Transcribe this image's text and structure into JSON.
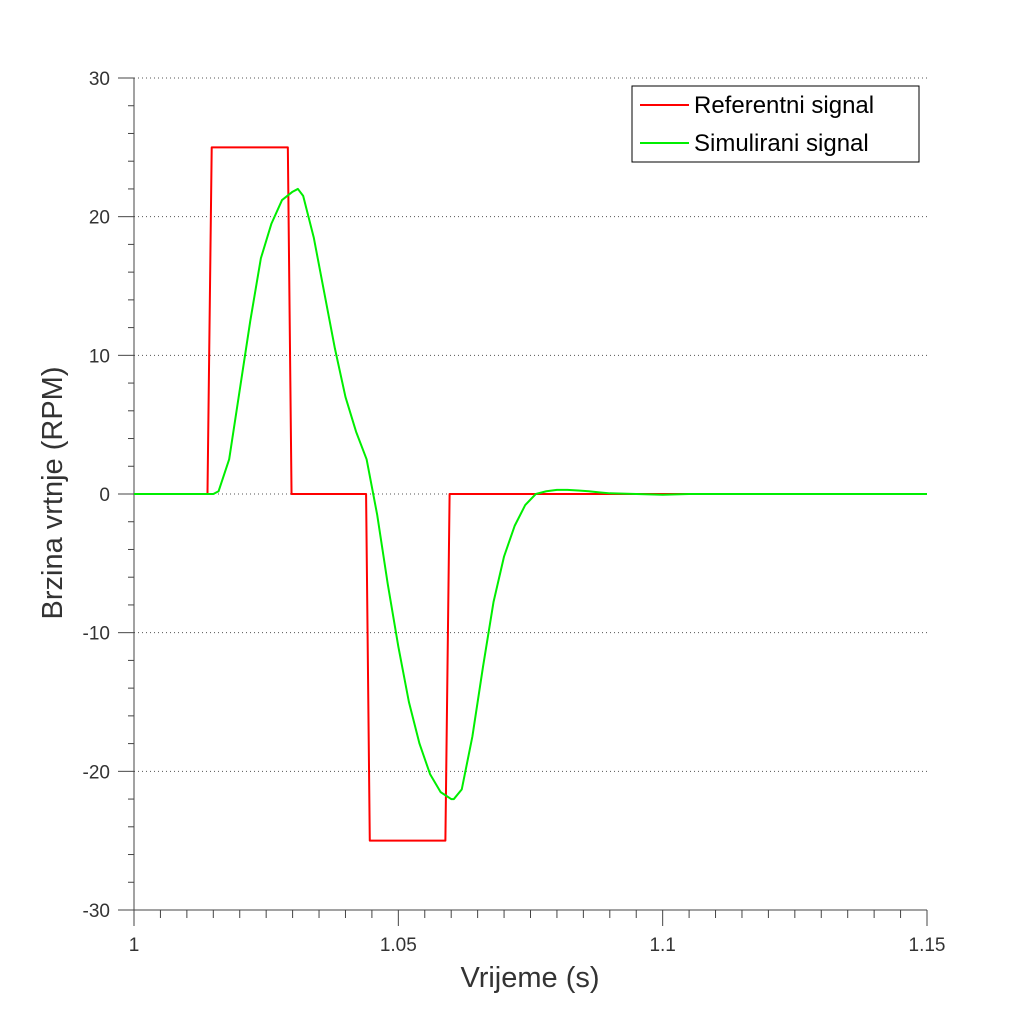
{
  "chart_data": {
    "type": "line",
    "title": "",
    "xlabel": "Vrijeme (s)",
    "ylabel": "Brzina vrtnje (RPM)",
    "xlim": [
      1,
      1.15
    ],
    "ylim": [
      -30,
      30
    ],
    "x_ticks": [
      1,
      1.05,
      1.1,
      1.15
    ],
    "x_tick_labels": [
      "1",
      "1.05",
      "1.1",
      "1.15"
    ],
    "y_ticks": [
      30,
      20,
      10,
      0,
      -10,
      -20,
      -30
    ],
    "y_tick_labels": [
      "30",
      "20",
      "10",
      "0",
      "-10",
      "-20",
      "-30"
    ],
    "grid": "horizontal dotted",
    "legend_position": "top-right",
    "series": [
      {
        "name": "Referentni signal",
        "color": "#ff0000",
        "x": [
          1.0,
          1.0139,
          1.0147,
          1.0291,
          1.0298,
          1.0439,
          1.0446,
          1.0589,
          1.0597,
          1.15
        ],
        "y": [
          0,
          0,
          25,
          25,
          0,
          0,
          -25,
          -25,
          0,
          0
        ]
      },
      {
        "name": "Simulirani signal",
        "color": "#00ee00",
        "x": [
          1.0,
          1.015,
          1.016,
          1.018,
          1.02,
          1.022,
          1.024,
          1.026,
          1.028,
          1.03,
          1.031,
          1.032,
          1.034,
          1.036,
          1.038,
          1.04,
          1.042,
          1.044,
          1.046,
          1.048,
          1.05,
          1.052,
          1.054,
          1.056,
          1.058,
          1.06,
          1.0605,
          1.062,
          1.064,
          1.066,
          1.068,
          1.07,
          1.072,
          1.074,
          1.076,
          1.078,
          1.08,
          1.082,
          1.084,
          1.086,
          1.088,
          1.09,
          1.095,
          1.1,
          1.105,
          1.11,
          1.15
        ],
        "y": [
          0,
          0,
          0.2,
          2.5,
          7.5,
          12.5,
          17,
          19.5,
          21.2,
          21.8,
          22,
          21.5,
          18.5,
          14.5,
          10.5,
          7,
          4.5,
          2.5,
          -1.5,
          -6.5,
          -11,
          -15,
          -18,
          -20.2,
          -21.5,
          -22,
          -22,
          -21.3,
          -17.5,
          -12.5,
          -7.8,
          -4.5,
          -2.3,
          -0.8,
          0,
          0.2,
          0.3,
          0.3,
          0.25,
          0.2,
          0.12,
          0.05,
          0,
          -0.05,
          0,
          0,
          0
        ]
      }
    ]
  }
}
